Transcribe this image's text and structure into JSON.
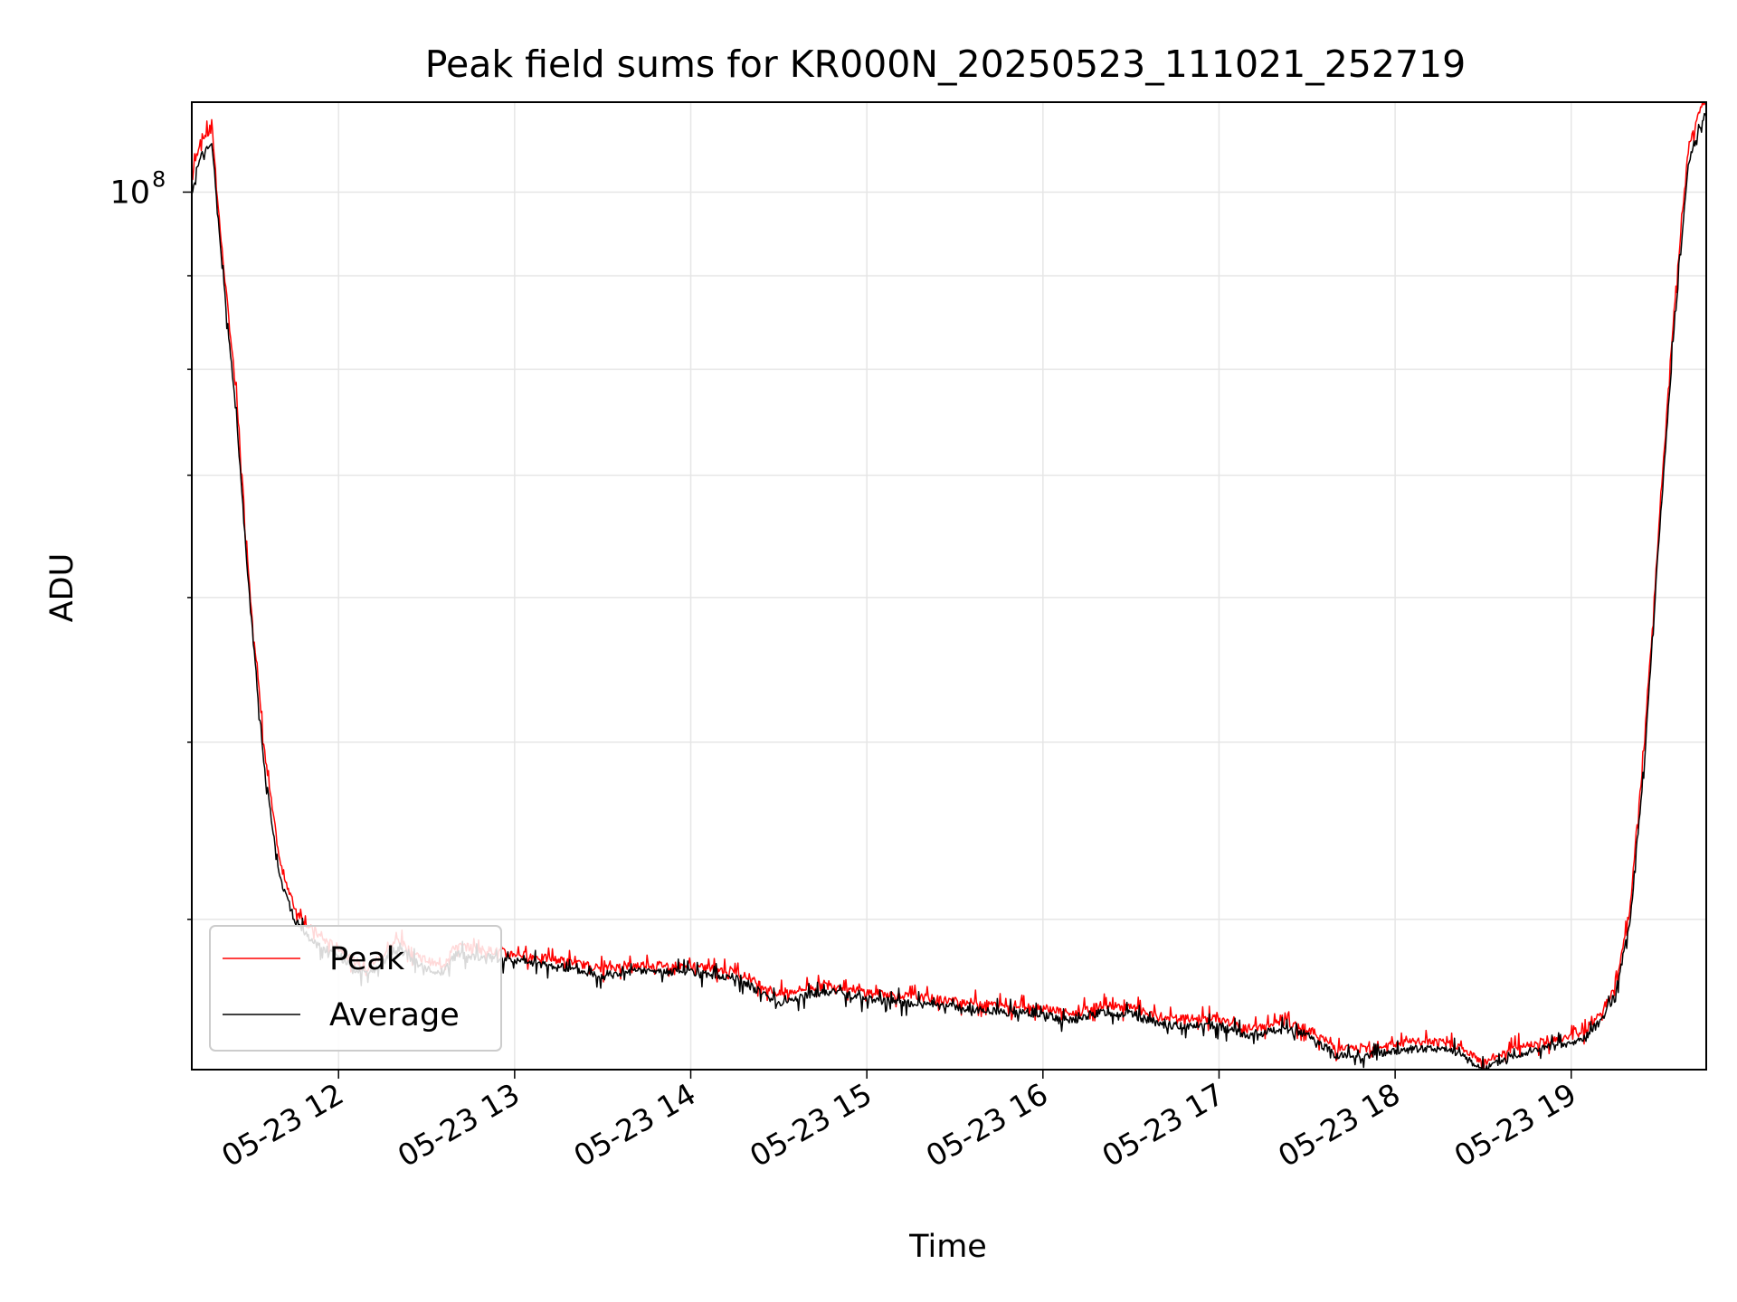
{
  "chart_data": {
    "type": "line",
    "title": "Peak field sums for KR000N_20250523_111021_252719",
    "xlabel": "Time",
    "ylabel": "ADU",
    "yscale": "log",
    "grid": true,
    "legend_position": "lower left",
    "x_tick_labels": [
      "05-23 12",
      "05-23 13",
      "05-23 14",
      "05-23 15",
      "05-23 16",
      "05-23 17",
      "05-23 18",
      "05-23 19"
    ],
    "y_tick_labels": [
      {
        "value": 100000000,
        "label": "10",
        "exponent": "8"
      }
    ],
    "series": [
      {
        "name": "Peak",
        "color": "#ff0000",
        "points": [
          [
            "05-23 11:10",
            102000000.0
          ],
          [
            "05-23 11:13",
            107000000.0
          ],
          [
            "05-23 11:17",
            108000000.0
          ],
          [
            "05-23 11:20",
            94000000.0
          ],
          [
            "05-23 11:25",
            78000000.0
          ],
          [
            "05-23 11:30",
            60000000.0
          ],
          [
            "05-23 11:35",
            49000000.0
          ],
          [
            "05-23 11:40",
            43000000.0
          ],
          [
            "05-23 11:45",
            40600000.0
          ],
          [
            "05-23 11:50",
            39600000.0
          ],
          [
            "05-23 11:55",
            39000000.0
          ],
          [
            "05-23 12:00",
            38600000.0
          ],
          [
            "05-23 12:05",
            38000000.0
          ],
          [
            "05-23 12:10",
            37700000.0
          ],
          [
            "05-23 12:15",
            38200000.0
          ],
          [
            "05-23 12:20",
            39000000.0
          ],
          [
            "05-23 12:25",
            38400000.0
          ],
          [
            "05-23 12:30",
            38000000.0
          ],
          [
            "05-23 12:35",
            37700000.0
          ],
          [
            "05-23 12:40",
            38700000.0
          ],
          [
            "05-23 12:45",
            38600000.0
          ],
          [
            "05-23 13:00",
            38300000.0
          ],
          [
            "05-23 13:15",
            38000000.0
          ],
          [
            "05-23 13:30",
            37600000.0
          ],
          [
            "05-23 13:45",
            37800000.0
          ],
          [
            "05-23 14:00",
            37700000.0
          ],
          [
            "05-23 14:15",
            37500000.0
          ],
          [
            "05-23 14:30",
            36400000.0
          ],
          [
            "05-23 14:40",
            36700000.0
          ],
          [
            "05-23 14:50",
            36800000.0
          ],
          [
            "05-23 15:00",
            36500000.0
          ],
          [
            "05-23 15:15",
            36300000.0
          ],
          [
            "05-23 15:30",
            36100000.0
          ],
          [
            "05-23 15:45",
            35900000.0
          ],
          [
            "05-23 16:00",
            35800000.0
          ],
          [
            "05-23 16:10",
            35500000.0
          ],
          [
            "05-23 16:20",
            35900000.0
          ],
          [
            "05-23 16:30",
            35800000.0
          ],
          [
            "05-23 16:40",
            35300000.0
          ],
          [
            "05-23 16:50",
            35300000.0
          ],
          [
            "05-23 17:00",
            35300000.0
          ],
          [
            "05-23 17:10",
            34800000.0
          ],
          [
            "05-23 17:20",
            35100000.0
          ],
          [
            "05-23 17:30",
            34900000.0
          ],
          [
            "05-23 17:40",
            34000000.0
          ],
          [
            "05-23 17:50",
            34000000.0
          ],
          [
            "05-23 18:00",
            34200000.0
          ],
          [
            "05-23 18:10",
            34300000.0
          ],
          [
            "05-23 18:20",
            34200000.0
          ],
          [
            "05-23 18:30",
            33400000.0
          ],
          [
            "05-23 18:40",
            34000000.0
          ],
          [
            "05-23 18:50",
            34300000.0
          ],
          [
            "05-23 19:00",
            34500000.0
          ],
          [
            "05-23 19:05",
            34800000.0
          ],
          [
            "05-23 19:10",
            35500000.0
          ],
          [
            "05-23 19:15",
            36800000.0
          ],
          [
            "05-23 19:20",
            40500000.0
          ],
          [
            "05-23 19:25",
            50000000.0
          ],
          [
            "05-23 19:30",
            66000000.0
          ],
          [
            "05-23 19:35",
            86000000.0
          ],
          [
            "05-23 19:40",
            106000000.0
          ],
          [
            "05-23 19:45",
            112000000.0
          ]
        ]
      },
      {
        "name": "Average",
        "color": "#000000",
        "points": [
          [
            "05-23 11:10",
            100000000.0
          ],
          [
            "05-23 11:13",
            105000000.0
          ],
          [
            "05-23 11:17",
            106000000.0
          ],
          [
            "05-23 11:20",
            92000000.0
          ],
          [
            "05-23 11:25",
            76000000.0
          ],
          [
            "05-23 11:30",
            59000000.0
          ],
          [
            "05-23 11:35",
            48000000.0
          ],
          [
            "05-23 11:40",
            42200000.0
          ],
          [
            "05-23 11:45",
            40000000.0
          ],
          [
            "05-23 11:50",
            39000000.0
          ],
          [
            "05-23 11:55",
            38500000.0
          ],
          [
            "05-23 12:00",
            38200000.0
          ],
          [
            "05-23 12:05",
            37600000.0
          ],
          [
            "05-23 12:10",
            37300000.0
          ],
          [
            "05-23 12:15",
            37800000.0
          ],
          [
            "05-23 12:20",
            38600000.0
          ],
          [
            "05-23 12:25",
            38000000.0
          ],
          [
            "05-23 12:30",
            37600000.0
          ],
          [
            "05-23 12:35",
            37400000.0
          ],
          [
            "05-23 12:40",
            38300000.0
          ],
          [
            "05-23 12:45",
            38200000.0
          ],
          [
            "05-23 13:00",
            38000000.0
          ],
          [
            "05-23 13:15",
            37700000.0
          ],
          [
            "05-23 13:30",
            37300000.0
          ],
          [
            "05-23 13:45",
            37500000.0
          ],
          [
            "05-23 14:00",
            37400000.0
          ],
          [
            "05-23 14:15",
            37200000.0
          ],
          [
            "05-23 14:30",
            36000000.0
          ],
          [
            "05-23 14:40",
            36400000.0
          ],
          [
            "05-23 14:50",
            36500000.0
          ],
          [
            "05-23 15:00",
            36200000.0
          ],
          [
            "05-23 15:15",
            36000000.0
          ],
          [
            "05-23 15:30",
            35800000.0
          ],
          [
            "05-23 15:45",
            35600000.0
          ],
          [
            "05-23 16:00",
            35500000.0
          ],
          [
            "05-23 16:10",
            35200000.0
          ],
          [
            "05-23 16:20",
            35600000.0
          ],
          [
            "05-23 16:30",
            35500000.0
          ],
          [
            "05-23 16:40",
            35000000.0
          ],
          [
            "05-23 16:50",
            35000000.0
          ],
          [
            "05-23 17:00",
            35000000.0
          ],
          [
            "05-23 17:10",
            34500000.0
          ],
          [
            "05-23 17:20",
            34800000.0
          ],
          [
            "05-23 17:30",
            34600000.0
          ],
          [
            "05-23 17:40",
            33700000.0
          ],
          [
            "05-23 17:50",
            33700000.0
          ],
          [
            "05-23 18:00",
            33900000.0
          ],
          [
            "05-23 18:10",
            34000000.0
          ],
          [
            "05-23 18:20",
            33900000.0
          ],
          [
            "05-23 18:30",
            33100000.0
          ],
          [
            "05-23 18:40",
            33700000.0
          ],
          [
            "05-23 18:50",
            34000000.0
          ],
          [
            "05-23 19:00",
            34200000.0
          ],
          [
            "05-23 19:05",
            34500000.0
          ],
          [
            "05-23 19:10",
            35200000.0
          ],
          [
            "05-23 19:15",
            36400000.0
          ],
          [
            "05-23 19:20",
            39800000.0
          ],
          [
            "05-23 19:25",
            49000000.0
          ],
          [
            "05-23 19:30",
            65000000.0
          ],
          [
            "05-23 19:35",
            84000000.0
          ],
          [
            "05-23 19:40",
            104000000.0
          ],
          [
            "05-23 19:45",
            110000000.0
          ]
        ]
      }
    ]
  }
}
